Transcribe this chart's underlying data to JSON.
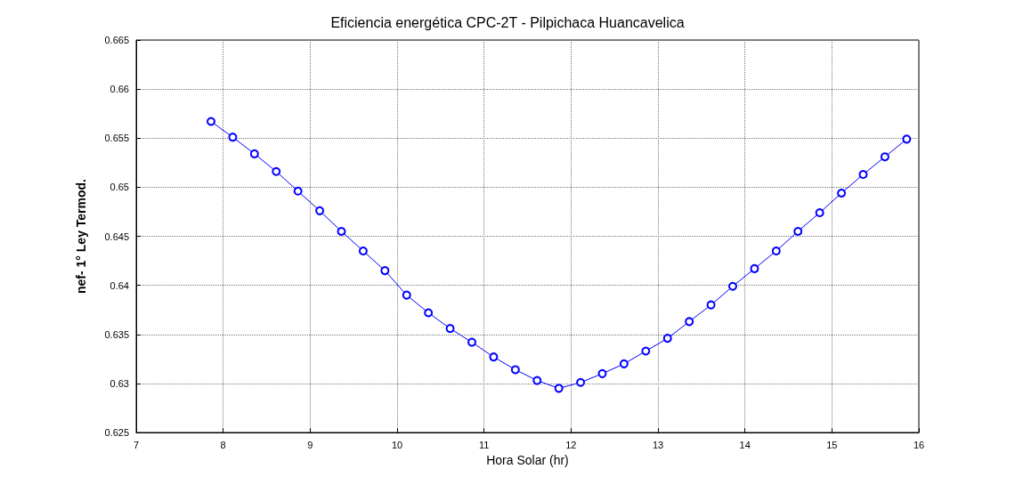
{
  "chart_data": {
    "type": "line",
    "title": "Eficiencia energética CPC-2T - Pilpichaca Huancavelica",
    "xlabel": "Hora Solar (hr)",
    "ylabel": "nef- 1° Ley Termod.",
    "x": [
      7.86,
      8.11,
      8.36,
      8.61,
      8.86,
      9.11,
      9.36,
      9.61,
      9.86,
      10.11,
      10.36,
      10.61,
      10.86,
      11.11,
      11.36,
      11.61,
      11.86,
      12.11,
      12.36,
      12.61,
      12.86,
      13.11,
      13.36,
      13.61,
      13.86,
      14.11,
      14.36,
      14.61,
      14.86,
      15.11,
      15.36,
      15.61,
      15.86
    ],
    "series": [
      {
        "color": "#0000ff",
        "values": [
          0.6567,
          0.6551,
          0.6534,
          0.6516,
          0.6496,
          0.6476,
          0.6455,
          0.6435,
          0.6415,
          0.639,
          0.6372,
          0.6356,
          0.6342,
          0.6327,
          0.6314,
          0.6303,
          0.6295,
          0.6301,
          0.631,
          0.632,
          0.6333,
          0.6346,
          0.6363,
          0.638,
          0.6399,
          0.6417,
          0.6435,
          0.6455,
          0.6474,
          0.6494,
          0.6513,
          0.6531,
          0.6549
        ]
      }
    ],
    "xlim": [
      7,
      16
    ],
    "xticks": [
      7,
      8,
      9,
      10,
      11,
      12,
      13,
      14,
      15,
      16
    ],
    "ylim": [
      0.625,
      0.665
    ],
    "yticks": [
      0.625,
      0.63,
      0.635,
      0.64,
      0.645,
      0.65,
      0.655,
      0.66,
      0.665
    ],
    "grid": true,
    "marker": "circle",
    "line_style": "solid"
  }
}
